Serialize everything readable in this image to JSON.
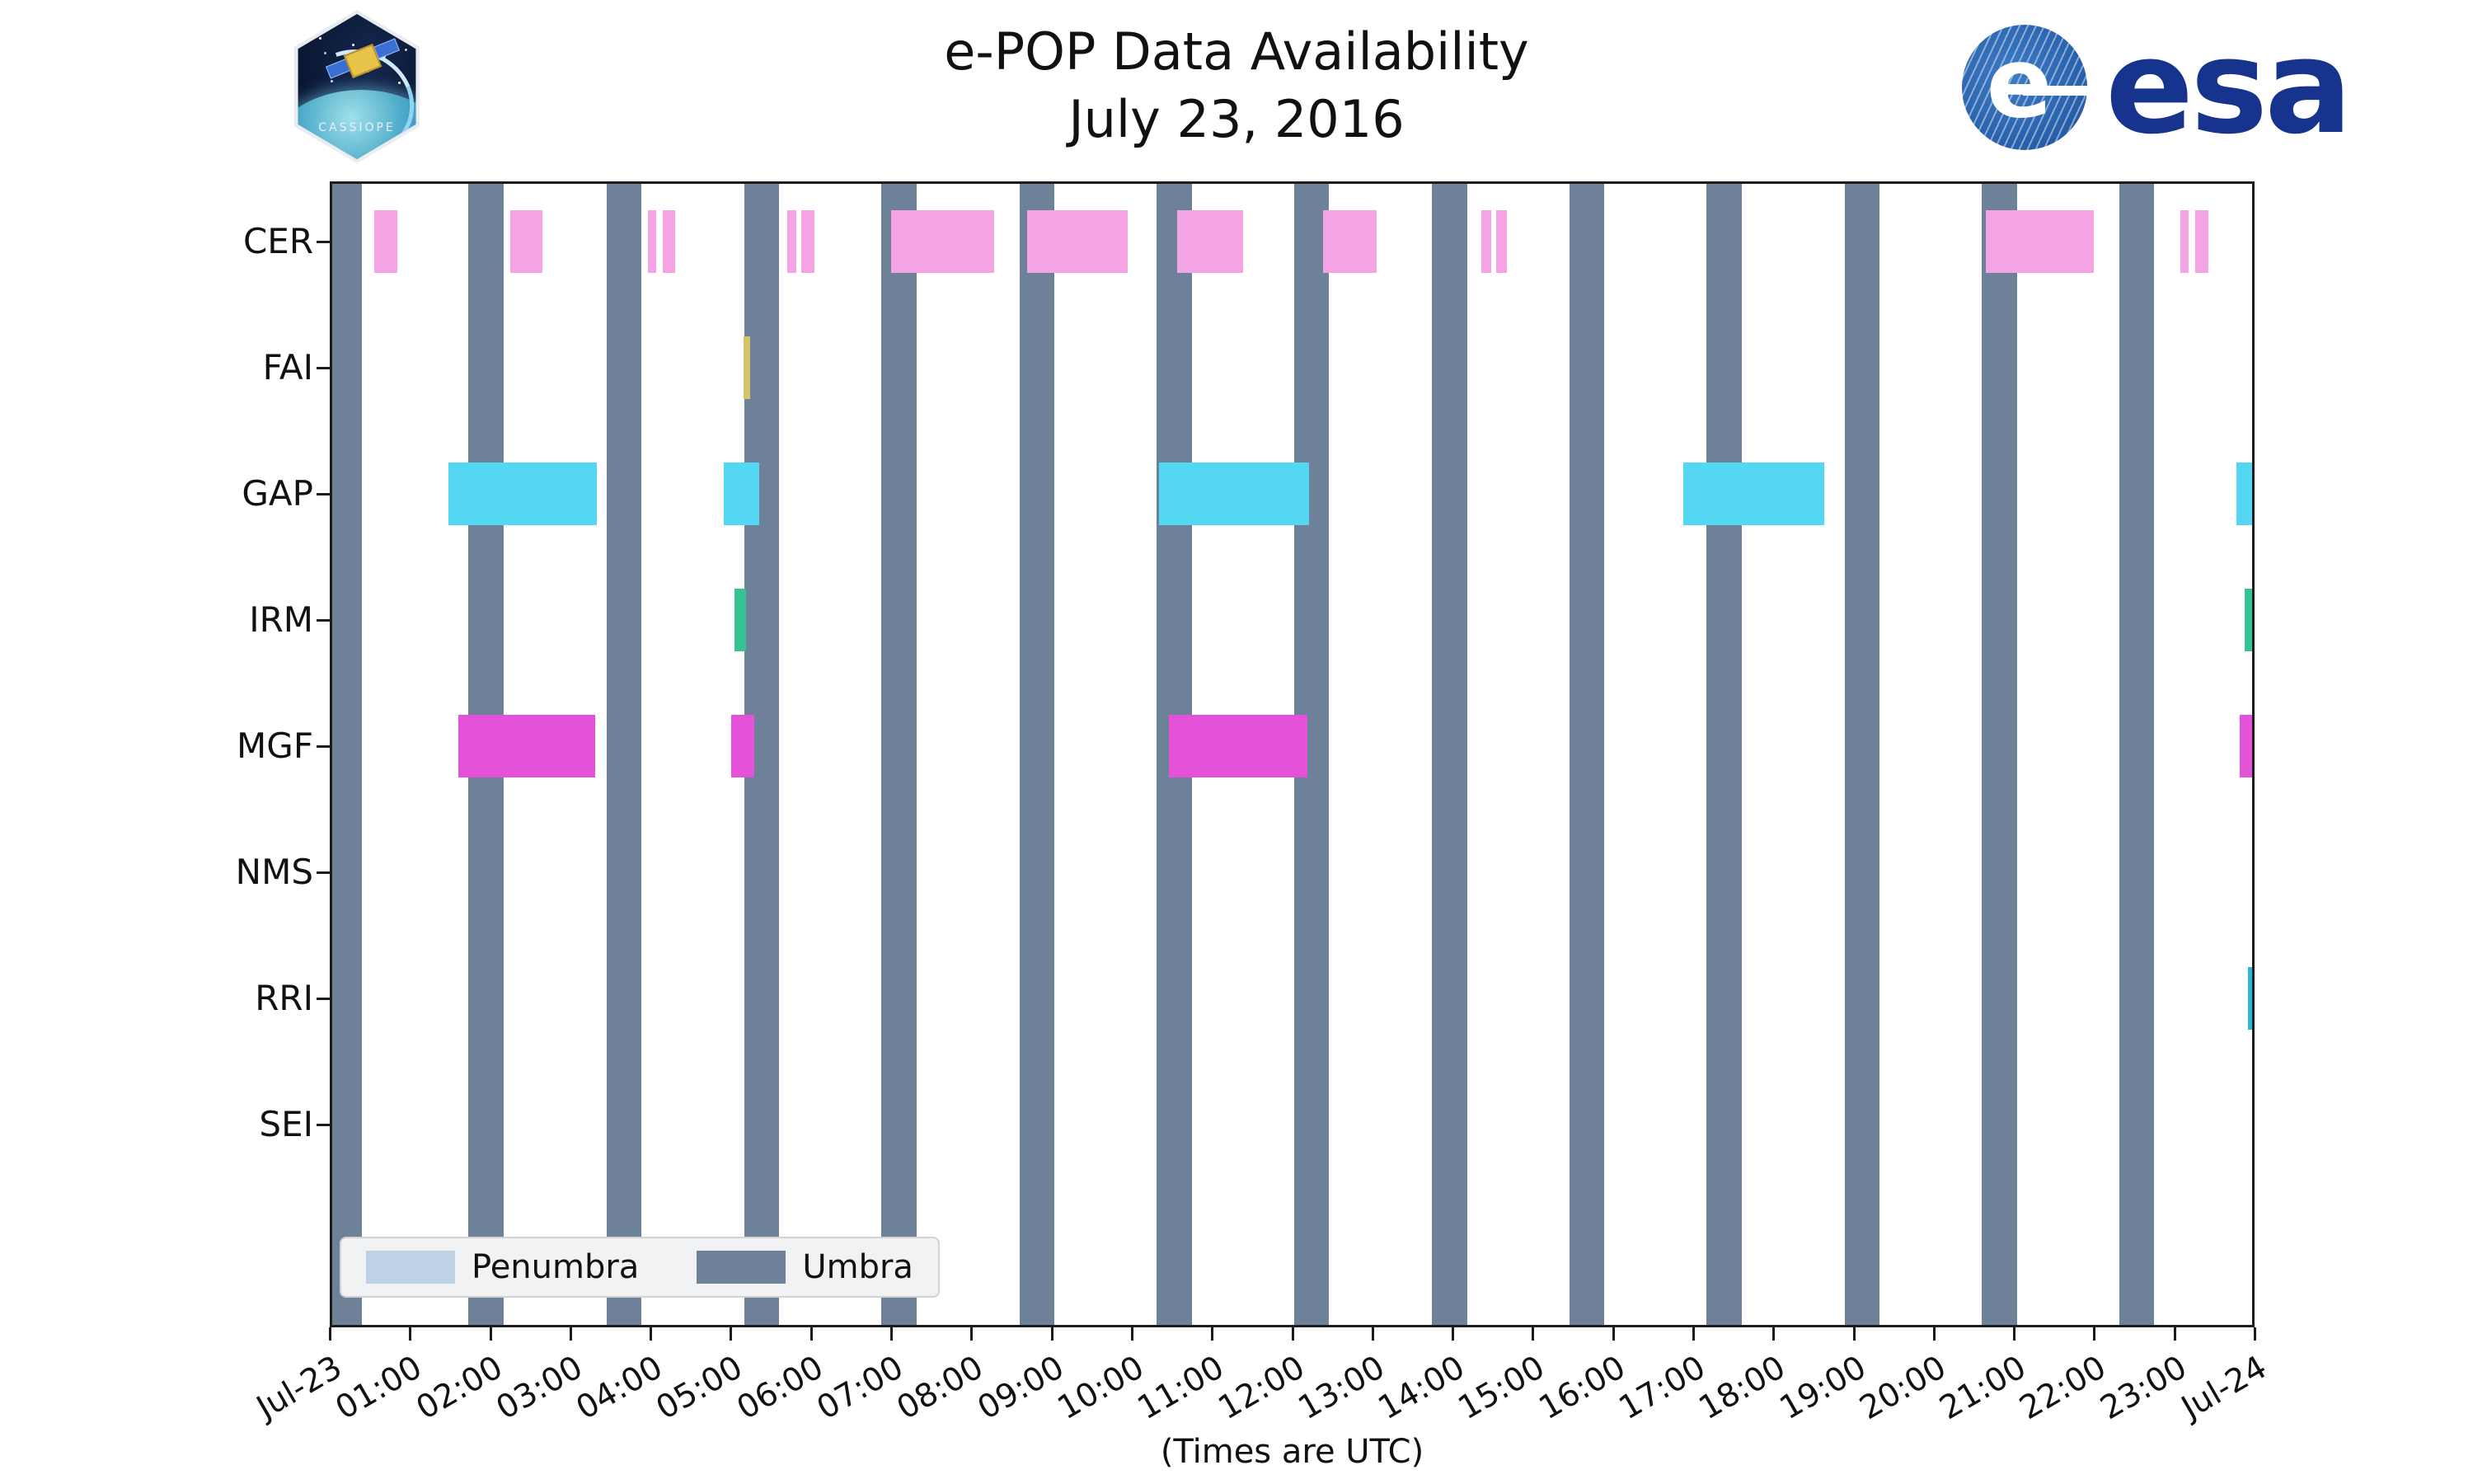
{
  "header": {
    "title_line1": "e-POP Data Availability",
    "title_line2": "July 23, 2016",
    "esa_logo_text": "esa",
    "cassiope_label": "CASSIOPE"
  },
  "chart_data": {
    "type": "bar",
    "subtype": "gantt-availability-timeline",
    "title": "e-POP Data Availability",
    "subtitle": "July 23, 2016",
    "xlabel": "(Times are UTC)",
    "x_range_hours": [
      0,
      24
    ],
    "x_ticks": [
      "Jul-23",
      "01:00",
      "02:00",
      "03:00",
      "04:00",
      "05:00",
      "06:00",
      "07:00",
      "08:00",
      "09:00",
      "10:00",
      "11:00",
      "12:00",
      "13:00",
      "14:00",
      "15:00",
      "16:00",
      "17:00",
      "18:00",
      "19:00",
      "20:00",
      "21:00",
      "22:00",
      "23:00",
      "Jul-24"
    ],
    "instruments": [
      "CER",
      "FAI",
      "GAP",
      "IRM",
      "MGF",
      "NMS",
      "RRI",
      "SEI"
    ],
    "colors": {
      "CER": "#f4a3e4",
      "FAI": "#d6c36e",
      "GAP": "#53d7f2",
      "IRM": "#35c491",
      "MGF": "#e352d9",
      "RRI": "#2ab5d9",
      "umbra": "#6d8199",
      "penumbra": "#bfd1e5"
    },
    "umbra_intervals_hours": [
      [
        0.0,
        0.4
      ],
      [
        1.73,
        2.17
      ],
      [
        3.45,
        3.89
      ],
      [
        5.17,
        5.6
      ],
      [
        6.88,
        7.32
      ],
      [
        8.6,
        9.03
      ],
      [
        10.31,
        10.75
      ],
      [
        12.03,
        12.46
      ],
      [
        13.74,
        14.18
      ],
      [
        15.46,
        15.89
      ],
      [
        17.17,
        17.61
      ],
      [
        18.89,
        19.32
      ],
      [
        20.6,
        21.04
      ],
      [
        22.31,
        22.75
      ]
    ],
    "availability": {
      "CER": [
        [
          0.56,
          0.84
        ],
        [
          2.25,
          2.65
        ],
        [
          3.97,
          4.07
        ],
        [
          4.15,
          4.31
        ],
        [
          5.7,
          5.82
        ],
        [
          5.88,
          6.04
        ],
        [
          7.0,
          8.28
        ],
        [
          8.7,
          9.95
        ],
        [
          10.57,
          11.39
        ],
        [
          12.39,
          13.05
        ],
        [
          14.36,
          14.48
        ],
        [
          14.54,
          14.68
        ],
        [
          20.65,
          22.0
        ],
        [
          23.08,
          23.18
        ],
        [
          23.26,
          23.42
        ]
      ],
      "FAI": [
        [
          5.16,
          5.24
        ]
      ],
      "GAP": [
        [
          1.48,
          3.33
        ],
        [
          4.91,
          5.36
        ],
        [
          10.34,
          12.21
        ],
        [
          16.88,
          18.63
        ],
        [
          23.77,
          24.0
        ]
      ],
      "IRM": [
        [
          5.05,
          5.19
        ],
        [
          23.88,
          24.0
        ]
      ],
      "MGF": [
        [
          1.6,
          3.31
        ],
        [
          5.01,
          5.29
        ],
        [
          10.46,
          12.19
        ],
        [
          23.81,
          24.0
        ]
      ],
      "NMS": [],
      "RRI": [
        [
          23.92,
          24.0
        ]
      ],
      "SEI": []
    },
    "legend": [
      {
        "label": "Penumbra",
        "color": "#bfd1e5"
      },
      {
        "label": "Umbra",
        "color": "#6d8199"
      }
    ],
    "layout_hints": {
      "grid": false,
      "legend_position": "lower left",
      "x_tick_rotation_deg": 30
    }
  }
}
